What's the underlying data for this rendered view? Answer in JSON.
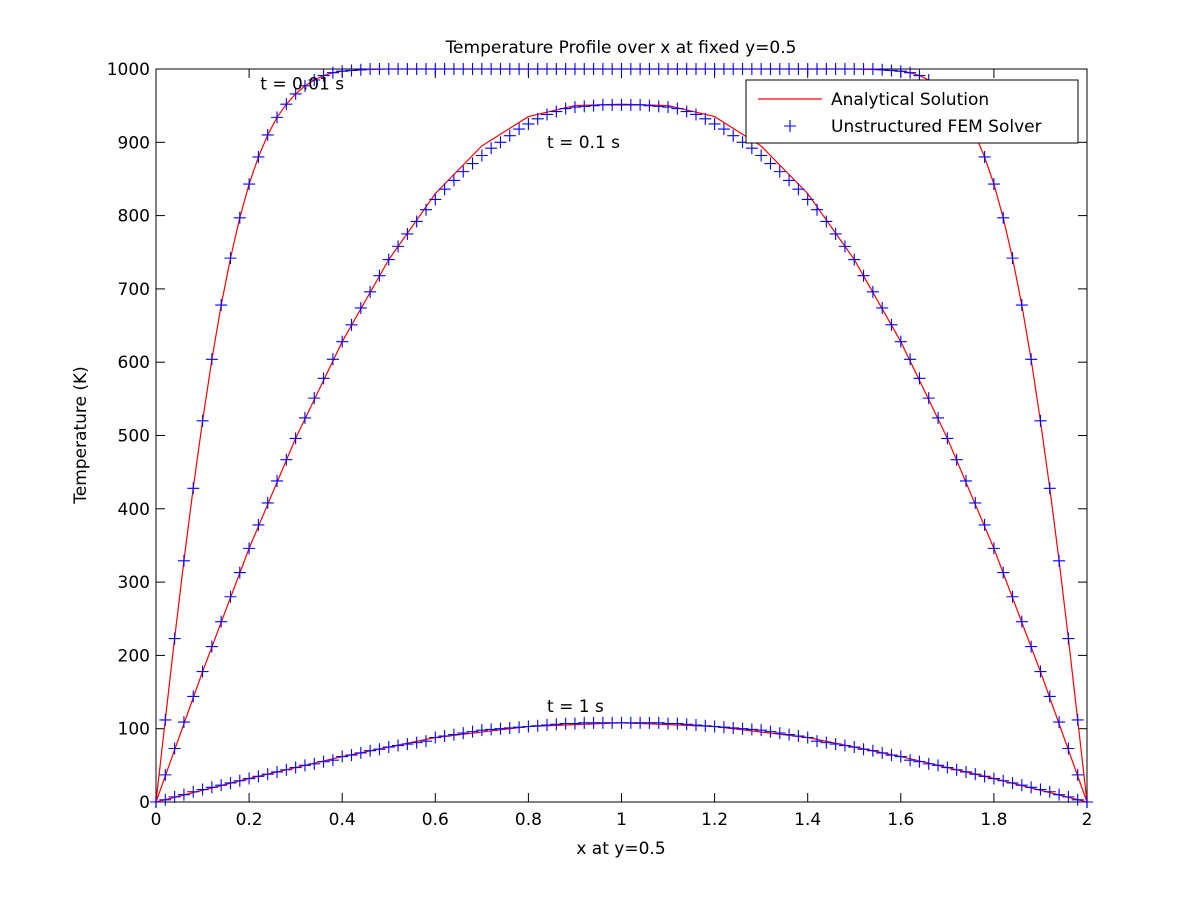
{
  "chart_data": {
    "type": "line",
    "title": "Temperature Profile over x at fixed y=0.5",
    "xlabel": "x at y=0.5",
    "ylabel": "Temperature (K)",
    "xlim": [
      0,
      2
    ],
    "ylim": [
      0,
      1000
    ],
    "xticks": [
      0,
      0.2,
      0.4,
      0.6,
      0.8,
      1,
      1.2,
      1.4,
      1.6,
      1.8,
      2
    ],
    "xtick_labels": [
      "0",
      "0.2",
      "0.4",
      "0.6",
      "0.8",
      "1",
      "1.2",
      "1.4",
      "1.6",
      "1.8",
      "2"
    ],
    "yticks": [
      0,
      100,
      200,
      300,
      400,
      500,
      600,
      700,
      800,
      900,
      1000
    ],
    "ytick_labels": [
      "0",
      "100",
      "200",
      "300",
      "400",
      "500",
      "600",
      "700",
      "800",
      "900",
      "1000"
    ],
    "grid": false,
    "legend_position": "top-right",
    "series": [
      {
        "name": "Analytical Solution",
        "style": "line",
        "color": "#ff0000",
        "curves": [
          {
            "time_label": "t = 0.01 s",
            "x": [
              0,
              0.02,
              0.04,
              0.06,
              0.08,
              0.1,
              0.12,
              0.14,
              0.16,
              0.18,
              0.2,
              0.22,
              0.24,
              0.26,
              0.28,
              0.3,
              0.32,
              0.34,
              0.36,
              0.38,
              0.4,
              0.45,
              0.5,
              1.0,
              1.5,
              1.55,
              1.6,
              1.62,
              1.64,
              1.66,
              1.68,
              1.7,
              1.72,
              1.74,
              1.76,
              1.78,
              1.8,
              1.82,
              1.84,
              1.86,
              1.88,
              1.9,
              1.92,
              1.94,
              1.96,
              1.98,
              2.0
            ],
            "y": [
              0,
              112,
              223,
              329,
              428,
              520,
              604,
              678,
              742,
              797,
              843,
              880,
              910,
              934,
              952,
              966,
              977,
              985,
              991,
              995,
              997,
              999,
              1000,
              1000,
              1000,
              999,
              997,
              995,
              991,
              985,
              977,
              966,
              952,
              934,
              910,
              880,
              843,
              797,
              742,
              678,
              604,
              520,
              428,
              329,
              223,
              112,
              0
            ]
          },
          {
            "time_label": "t = 0.1 s",
            "x": [
              0,
              0.1,
              0.2,
              0.3,
              0.4,
              0.5,
              0.6,
              0.7,
              0.8,
              0.9,
              1.0,
              1.1,
              1.2,
              1.3,
              1.4,
              1.5,
              1.6,
              1.7,
              1.8,
              1.9,
              2.0
            ],
            "y": [
              0,
              178,
              346,
              496,
              628,
              740,
              830,
              895,
              935,
              950,
              952,
              950,
              935,
              895,
              830,
              740,
              628,
              496,
              346,
              178,
              0
            ]
          },
          {
            "time_label": "t = 1 s",
            "x": [
              0,
              0.2,
              0.4,
              0.6,
              0.8,
              1.0,
              1.2,
              1.4,
              1.6,
              1.8,
              2.0
            ],
            "y": [
              0,
              32,
              62,
              88,
              103,
              108,
              103,
              88,
              62,
              32,
              0
            ]
          }
        ]
      },
      {
        "name": "Unstructured FEM Solver",
        "style": "markers",
        "marker": "+",
        "color": "#0000ff",
        "curves": [
          {
            "time_label": "t = 0.01 s",
            "x": [
              0,
              0.02,
              0.04,
              0.06,
              0.08,
              0.1,
              0.12,
              0.14,
              0.16,
              0.18,
              0.2,
              0.22,
              0.24,
              0.26,
              0.28,
              0.3,
              0.32,
              0.34,
              0.36,
              0.38,
              0.4,
              0.42,
              0.44,
              0.46,
              0.48,
              0.5,
              0.52,
              0.54,
              0.56,
              0.58,
              0.6,
              0.62,
              0.64,
              0.66,
              0.68,
              0.7,
              0.72,
              0.74,
              0.76,
              0.78,
              0.8,
              0.82,
              0.84,
              0.86,
              0.88,
              0.9,
              0.92,
              0.94,
              0.96,
              0.98,
              1.0,
              1.02,
              1.04,
              1.06,
              1.08,
              1.1,
              1.12,
              1.14,
              1.16,
              1.18,
              1.2,
              1.22,
              1.24,
              1.26,
              1.28,
              1.3,
              1.32,
              1.34,
              1.36,
              1.38,
              1.4,
              1.42,
              1.44,
              1.46,
              1.48,
              1.5,
              1.52,
              1.54,
              1.56,
              1.58,
              1.6,
              1.62,
              1.64,
              1.66,
              1.78,
              1.8,
              1.82,
              1.84,
              1.86,
              1.88,
              1.9,
              1.92,
              1.94,
              1.96,
              1.98,
              2.0
            ],
            "y": [
              0,
              112,
              223,
              329,
              428,
              520,
              604,
              678,
              742,
              797,
              843,
              880,
              910,
              934,
              952,
              966,
              977,
              985,
              991,
              995,
              997,
              998,
              999,
              1000,
              1000,
              1000,
              1000,
              1000,
              1000,
              1000,
              1000,
              1000,
              1000,
              1000,
              1000,
              1000,
              1000,
              1000,
              1000,
              1000,
              1000,
              1000,
              1000,
              1000,
              1000,
              1000,
              1000,
              1000,
              1000,
              1000,
              1000,
              1000,
              1000,
              1000,
              1000,
              1000,
              1000,
              1000,
              1000,
              1000,
              1000,
              1000,
              1000,
              1000,
              1000,
              1000,
              1000,
              1000,
              1000,
              1000,
              1000,
              1000,
              1000,
              1000,
              1000,
              1000,
              1000,
              1000,
              999,
              998,
              997,
              995,
              991,
              985,
              880,
              843,
              797,
              742,
              678,
              604,
              520,
              428,
              329,
              223,
              112,
              0
            ]
          },
          {
            "time_label": "t = 0.1 s",
            "x": [
              0,
              0.02,
              0.04,
              0.06,
              0.08,
              0.1,
              0.12,
              0.14,
              0.16,
              0.18,
              0.2,
              0.22,
              0.24,
              0.26,
              0.28,
              0.3,
              0.32,
              0.34,
              0.36,
              0.38,
              0.4,
              0.42,
              0.44,
              0.46,
              0.48,
              0.5,
              0.52,
              0.54,
              0.56,
              0.58,
              0.6,
              0.62,
              0.64,
              0.66,
              0.68,
              0.7,
              0.72,
              0.74,
              0.76,
              0.78,
              0.8,
              0.82,
              0.84,
              0.86,
              0.88,
              0.9,
              0.92,
              0.94,
              0.96,
              0.98,
              1.0,
              1.02,
              1.04,
              1.06,
              1.08,
              1.1,
              1.12,
              1.14,
              1.16,
              1.18,
              1.2,
              1.22,
              1.24,
              1.26,
              1.28,
              1.3,
              1.32,
              1.34,
              1.36,
              1.38,
              1.4,
              1.42,
              1.44,
              1.46,
              1.48,
              1.5,
              1.52,
              1.54,
              1.56,
              1.58,
              1.6,
              1.62,
              1.64,
              1.66,
              1.68,
              1.7,
              1.72,
              1.74,
              1.76,
              1.78,
              1.8,
              1.82,
              1.84,
              1.86,
              1.88,
              1.9,
              1.92,
              1.94,
              1.96,
              1.98,
              2.0
            ],
            "y": [
              0,
              37,
              73,
              109,
              144,
              178,
              212,
              246,
              280,
              313,
              346,
              378,
              408,
              438,
              467,
              496,
              524,
              551,
              578,
              604,
              628,
              651,
              674,
              696,
              718,
              740,
              758,
              775,
              792,
              808,
              822,
              836,
              848,
              860,
              871,
              882,
              892,
              900,
              909,
              918,
              925,
              932,
              938,
              942,
              946,
              948,
              949,
              950,
              951,
              951,
              951,
              951,
              951,
              950,
              949,
              948,
              946,
              942,
              938,
              932,
              925,
              918,
              909,
              900,
              892,
              882,
              871,
              860,
              848,
              836,
              822,
              808,
              792,
              775,
              758,
              740,
              718,
              696,
              674,
              651,
              628,
              604,
              578,
              551,
              524,
              496,
              467,
              438,
              408,
              378,
              346,
              313,
              280,
              246,
              212,
              178,
              144,
              109,
              73,
              37,
              0
            ]
          },
          {
            "time_label": "t = 1 s",
            "x": [
              0,
              0.02,
              0.04,
              0.06,
              0.08,
              0.1,
              0.12,
              0.14,
              0.16,
              0.18,
              0.2,
              0.22,
              0.24,
              0.26,
              0.28,
              0.3,
              0.32,
              0.34,
              0.36,
              0.38,
              0.4,
              0.42,
              0.44,
              0.46,
              0.48,
              0.5,
              0.52,
              0.54,
              0.56,
              0.58,
              0.6,
              0.62,
              0.64,
              0.66,
              0.68,
              0.7,
              0.72,
              0.74,
              0.76,
              0.78,
              0.8,
              0.82,
              0.84,
              0.86,
              0.88,
              0.9,
              0.92,
              0.94,
              0.96,
              0.98,
              1.0,
              1.02,
              1.04,
              1.06,
              1.08,
              1.1,
              1.12,
              1.14,
              1.16,
              1.18,
              1.2,
              1.22,
              1.24,
              1.26,
              1.28,
              1.3,
              1.32,
              1.34,
              1.36,
              1.38,
              1.4,
              1.42,
              1.44,
              1.46,
              1.48,
              1.5,
              1.52,
              1.54,
              1.56,
              1.58,
              1.6,
              1.62,
              1.64,
              1.66,
              1.68,
              1.7,
              1.72,
              1.74,
              1.76,
              1.78,
              1.8,
              1.82,
              1.84,
              1.86,
              1.88,
              1.9,
              1.92,
              1.94,
              1.96,
              1.98,
              2.0
            ],
            "y": [
              0,
              3,
              7,
              10,
              14,
              17,
              20,
              23,
              26,
              29,
              32,
              35,
              38,
              41,
              44,
              47,
              50,
              52,
              55,
              57,
              62,
              64,
              67,
              70,
              72,
              75,
              77,
              79,
              81,
              83,
              88,
              90,
              92,
              94,
              96,
              98,
              99,
              100,
              101,
              102,
              103,
              104,
              105,
              106,
              107,
              107,
              108,
              108,
              108,
              108,
              108,
              108,
              108,
              108,
              108,
              107,
              107,
              106,
              105,
              104,
              103,
              102,
              101,
              100,
              99,
              98,
              96,
              94,
              92,
              90,
              88,
              83,
              81,
              79,
              77,
              75,
              72,
              70,
              67,
              64,
              62,
              57,
              55,
              52,
              50,
              47,
              44,
              41,
              38,
              35,
              32,
              29,
              26,
              23,
              20,
              17,
              14,
              10,
              7,
              3,
              0
            ]
          }
        ]
      }
    ],
    "annotations": [
      {
        "text": "t = 0.01 s",
        "x": 0.6,
        "y": 972
      },
      {
        "text": "t = 0.1 s",
        "x": 0.84,
        "y": 892
      },
      {
        "text": "t = 1 s",
        "x": 0.84,
        "y": 123
      }
    ]
  }
}
